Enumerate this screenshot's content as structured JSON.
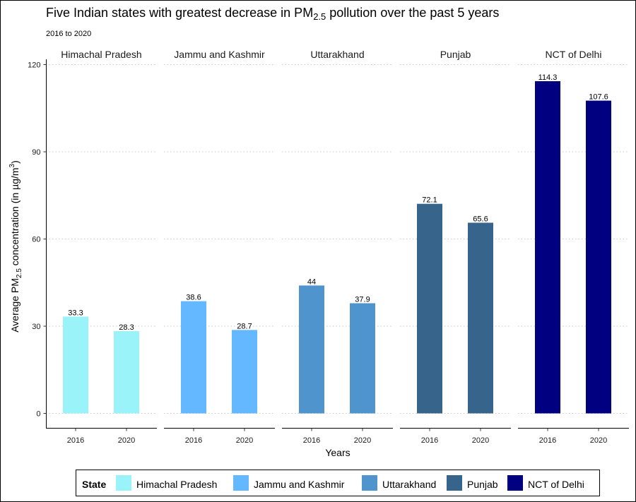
{
  "chart_data": {
    "type": "bar",
    "title_main": "Five Indian states with greatest decrease in PM",
    "title_sub": "2.5",
    "title_rest": " pollution over the past 5 years",
    "subtitle": "2016 to 2020",
    "xlabel": "Years",
    "ylabel_pre": "Average PM",
    "ylabel_sub": "2.5",
    "ylabel_mid": " concentration (in µg/m",
    "ylabel_sup": "3",
    "ylabel_post": ")",
    "ylim": [
      0,
      120
    ],
    "yticks": [
      "0",
      "30",
      "60",
      "90",
      "120"
    ],
    "ytick_values": [
      0,
      30,
      60,
      90,
      120
    ],
    "grid": "horizontal dotted",
    "legend_title": "State",
    "legend_position": "bottom",
    "categories": [
      "2016",
      "2020"
    ],
    "facets": [
      {
        "name": "Himachal Pradesh",
        "color": "#9BF3FA",
        "values": [
          33.3,
          28.3
        ],
        "labels": [
          "33.3",
          "28.3"
        ]
      },
      {
        "name": "Jammu and Kashmir",
        "color": "#63B8FF",
        "values": [
          38.6,
          28.7
        ],
        "labels": [
          "38.6",
          "28.7"
        ]
      },
      {
        "name": "Uttarakhand",
        "color": "#4F94CD",
        "values": [
          44,
          37.9
        ],
        "labels": [
          "44",
          "37.9"
        ]
      },
      {
        "name": "Punjab",
        "color": "#36648B",
        "values": [
          72.1,
          65.6
        ],
        "labels": [
          "72.1",
          "65.6"
        ]
      },
      {
        "name": "NCT of Delhi",
        "color": "#000080",
        "values": [
          114.3,
          107.6
        ],
        "labels": [
          "114.3",
          "107.6"
        ]
      }
    ]
  }
}
